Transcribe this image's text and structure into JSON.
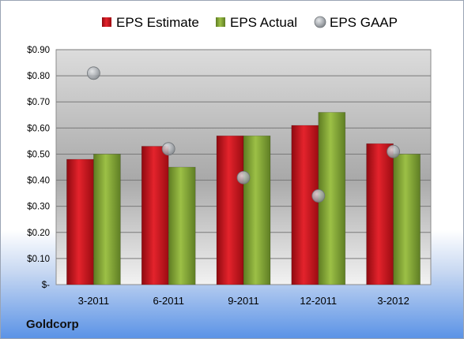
{
  "company": "Goldcorp",
  "colors": {
    "estimate": "#c8141e",
    "actual": "#7fa032",
    "gaap": "#b4b8bc"
  },
  "chart_data": {
    "type": "bar",
    "categories": [
      "3-2011",
      "6-2011",
      "9-2011",
      "12-2011",
      "3-2012"
    ],
    "series": [
      {
        "name": "EPS Estimate",
        "type": "bar",
        "values": [
          0.48,
          0.53,
          0.57,
          0.61,
          0.54
        ]
      },
      {
        "name": "EPS Actual",
        "type": "bar",
        "values": [
          0.5,
          0.45,
          0.57,
          0.66,
          0.5
        ]
      },
      {
        "name": "EPS GAAP",
        "type": "scatter",
        "values": [
          0.81,
          0.52,
          0.41,
          0.34,
          0.51
        ]
      }
    ],
    "yticks": [
      "$-",
      "$0.10",
      "$0.20",
      "$0.30",
      "$0.40",
      "$0.50",
      "$0.60",
      "$0.70",
      "$0.80",
      "$0.90"
    ],
    "ylim": [
      0,
      0.9
    ],
    "grid": true,
    "legend": "top"
  }
}
